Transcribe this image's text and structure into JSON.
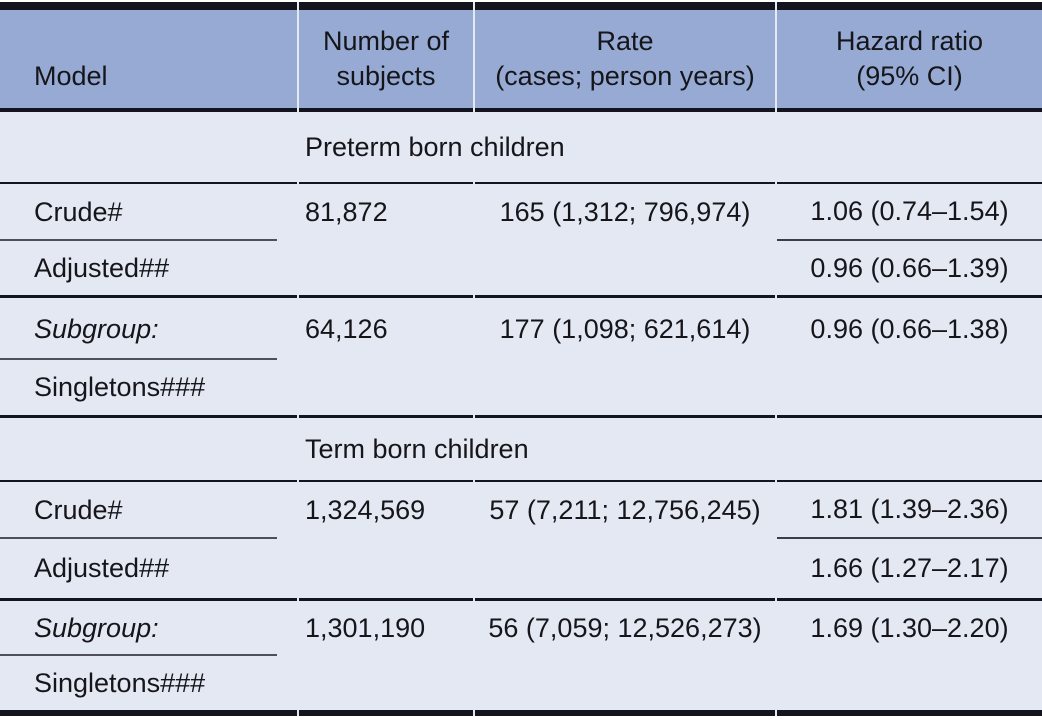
{
  "table": {
    "header": {
      "model": "Model",
      "subjects": "Number of\nsubjects",
      "rate": "Rate\n(cases; person years)",
      "hazard": "Hazard ratio\n(95% CI)"
    },
    "sections": [
      {
        "title": "Preterm born children",
        "rows": [
          {
            "model": "Crude#",
            "subjects": "81,872",
            "rate": "165 (1,312; 796,974)",
            "hazard": "1.06 (0.74–1.54)"
          },
          {
            "model": "Adjusted##",
            "hazard": "0.96 (0.66–1.39)"
          },
          {
            "model": "Subgroup:",
            "subjects": "64,126",
            "rate": "177 (1,098; 621,614)",
            "hazard": "0.96 (0.66–1.38)"
          },
          {
            "model": "Singletons###"
          }
        ]
      },
      {
        "title": "Term born children",
        "rows": [
          {
            "model": "Crude#",
            "subjects": "1,324,569",
            "rate": "57 (7,211; 12,756,245)",
            "hazard": "1.81 (1.39–2.36)"
          },
          {
            "model": "Adjusted##",
            "hazard": "1.66 (1.27–2.17)"
          },
          {
            "model": "Subgroup:",
            "subjects": "1,301,190",
            "rate": "56 (7,059; 12,526,273)",
            "hazard": "1.69 (1.30–2.20)"
          },
          {
            "model": "Singletons###"
          }
        ]
      }
    ]
  },
  "colors": {
    "header_bg": "#96aad4",
    "body_bg": "#e3e8f3",
    "rule_dark": "#14141f",
    "rule_grey": "#4e4f59"
  }
}
